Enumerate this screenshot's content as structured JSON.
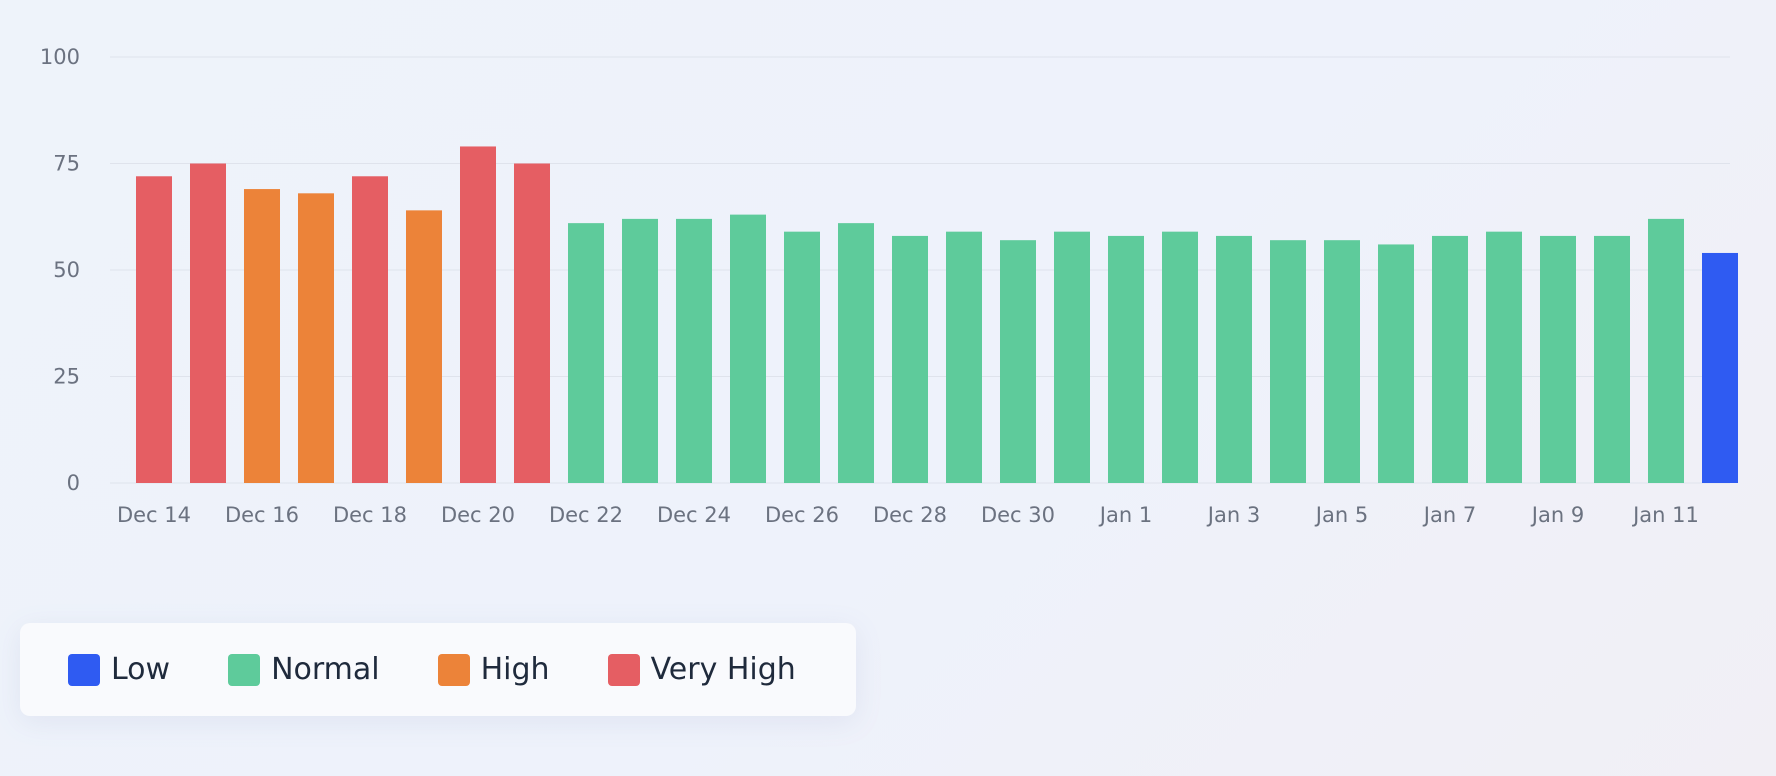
{
  "chart_data": {
    "type": "bar",
    "categories": [
      "Dec 14",
      "Dec 15",
      "Dec 16",
      "Dec 17",
      "Dec 18",
      "Dec 19",
      "Dec 20",
      "Dec 21",
      "Dec 22",
      "Dec 23",
      "Dec 24",
      "Dec 25",
      "Dec 26",
      "Dec 27",
      "Dec 28",
      "Dec 29",
      "Dec 30",
      "Dec 31",
      "Jan 1",
      "Jan 2",
      "Jan 3",
      "Jan 4",
      "Jan 5",
      "Jan 6",
      "Jan 7",
      "Jan 8",
      "Jan 9",
      "Jan 10",
      "Jan 11",
      "Jan 12"
    ],
    "values": [
      72,
      75,
      69,
      68,
      72,
      64,
      79,
      75,
      61,
      62,
      62,
      63,
      59,
      61,
      58,
      59,
      57,
      59,
      58,
      59,
      58,
      57,
      57,
      56,
      58,
      59,
      58,
      58,
      62,
      54
    ],
    "levels": [
      "Very High",
      "Very High",
      "High",
      "High",
      "Very High",
      "High",
      "Very High",
      "Very High",
      "Normal",
      "Normal",
      "Normal",
      "Normal",
      "Normal",
      "Normal",
      "Normal",
      "Normal",
      "Normal",
      "Normal",
      "Normal",
      "Normal",
      "Normal",
      "Normal",
      "Normal",
      "Normal",
      "Normal",
      "Normal",
      "Normal",
      "Normal",
      "Normal",
      "Low"
    ],
    "x_tick_labels": [
      "Dec 14",
      "Dec 16",
      "Dec 18",
      "Dec 20",
      "Dec 22",
      "Dec 24",
      "Dec 26",
      "Dec 28",
      "Dec 30",
      "Jan 1",
      "Jan 3",
      "Jan 5",
      "Jan 7",
      "Jan 9",
      "Jan 11"
    ],
    "y_ticks": [
      0,
      25,
      50,
      75,
      100
    ],
    "ylim": [
      0,
      100
    ],
    "grid": true,
    "legend_position": "bottom-left",
    "legend": [
      {
        "label": "Low",
        "color": "#2f5bf2"
      },
      {
        "label": "Normal",
        "color": "#5ecb9b"
      },
      {
        "label": "High",
        "color": "#ec8339"
      },
      {
        "label": "Very High",
        "color": "#e55e63"
      }
    ]
  }
}
